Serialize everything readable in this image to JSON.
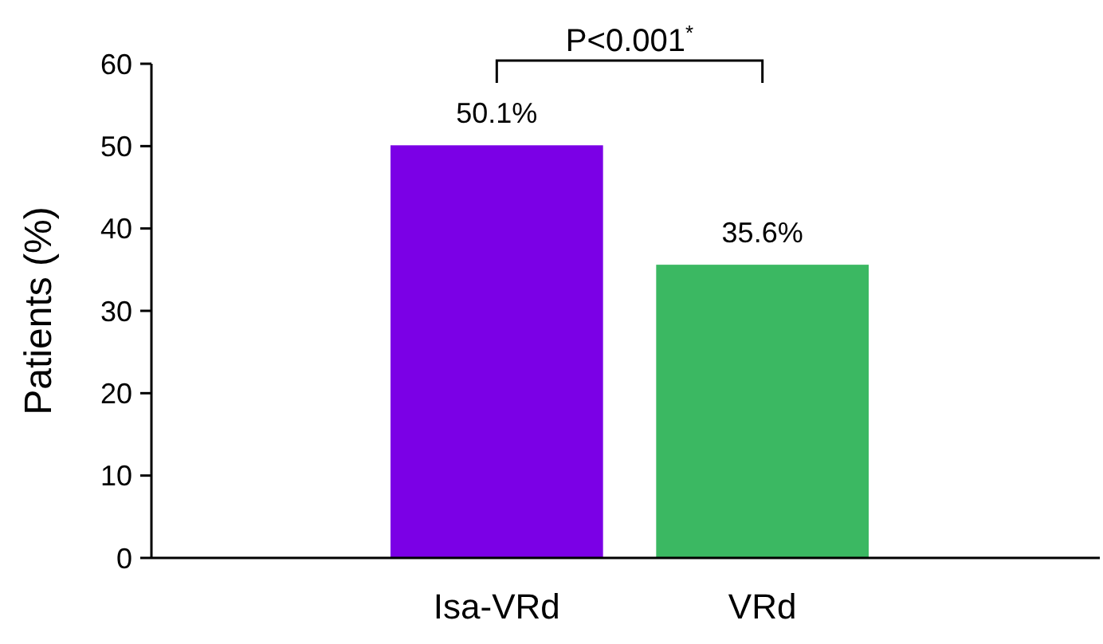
{
  "chart_data": {
    "type": "bar",
    "ylabel": "Patients (%)",
    "categories": [
      "Isa-VRd",
      "VRd"
    ],
    "values": [
      50.1,
      35.6
    ],
    "colors": [
      "#7b00e6",
      "#3bb862"
    ],
    "value_labels": [
      "50.1%",
      "35.6%"
    ],
    "ylim": [
      0,
      60
    ],
    "yticks": [
      0,
      10,
      20,
      30,
      40,
      50,
      60
    ],
    "annotations": [
      "P<0.001$^{*}$"
    ],
    "grid": false
  }
}
